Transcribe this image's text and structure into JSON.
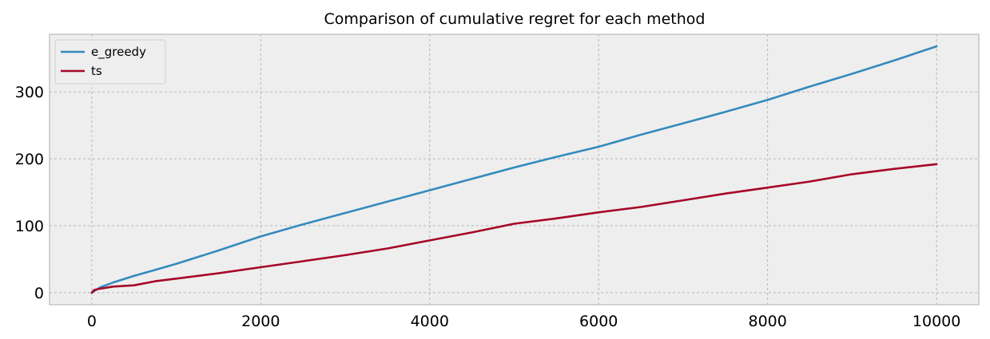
{
  "chart_data": {
    "type": "line",
    "title": "Comparison of cumulative regret for each method",
    "xlabel": "",
    "ylabel": "",
    "xlim": [
      -500,
      10500
    ],
    "ylim": [
      -18,
      386
    ],
    "xticks": [
      0,
      2000,
      4000,
      6000,
      8000,
      10000
    ],
    "yticks": [
      0,
      100,
      200,
      300
    ],
    "grid": true,
    "legend_position": "top-left",
    "background": "#EEEEEE",
    "grid_color": "#B0B0B0",
    "series": [
      {
        "name": "e_greedy",
        "color": "#348ABD",
        "x": [
          0,
          100,
          250,
          500,
          750,
          1000,
          1500,
          2000,
          2500,
          3000,
          3500,
          4000,
          4500,
          5000,
          5500,
          6000,
          6500,
          7000,
          7500,
          8000,
          8500,
          9000,
          9500,
          10000
        ],
        "y": [
          0,
          8,
          15,
          25,
          34,
          43,
          63,
          84,
          102,
          119,
          136,
          153,
          170,
          187,
          203,
          218,
          236,
          253,
          270,
          288,
          308,
          327,
          347,
          368
        ]
      },
      {
        "name": "ts",
        "color": "#A60628",
        "x": [
          0,
          30,
          100,
          250,
          500,
          750,
          1000,
          1500,
          2000,
          2500,
          3000,
          3500,
          4000,
          4500,
          5000,
          5500,
          6000,
          6500,
          7000,
          7500,
          8000,
          8500,
          9000,
          9500,
          10000
        ],
        "y": [
          0,
          4,
          6,
          9,
          11,
          17,
          21,
          29,
          38,
          47,
          56,
          66,
          78,
          90,
          103,
          111,
          120,
          128,
          138,
          148,
          157,
          166,
          177,
          185,
          192
        ]
      }
    ]
  }
}
